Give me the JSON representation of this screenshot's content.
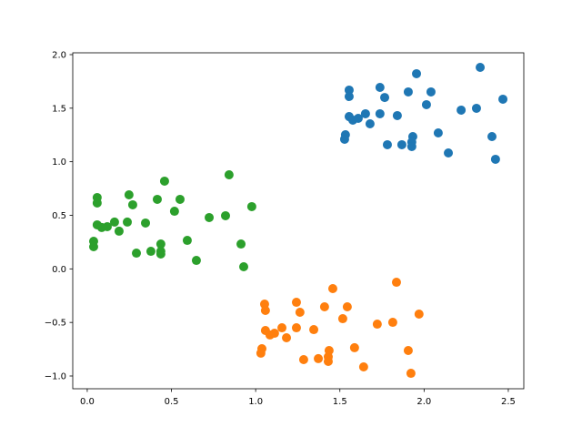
{
  "chart_data": {
    "type": "scatter",
    "xlim": [
      -0.086,
      2.592
    ],
    "ylim": [
      -1.119,
      2.017
    ],
    "xticks": [
      {
        "value": 0,
        "label": "0.0"
      },
      {
        "value": 0.5,
        "label": "0.5"
      },
      {
        "value": 1,
        "label": "1.0"
      },
      {
        "value": 1.5,
        "label": "1.5"
      },
      {
        "value": 2,
        "label": "2.0"
      },
      {
        "value": 2.5,
        "label": "2.5"
      }
    ],
    "yticks": [
      {
        "value": -1,
        "label": "−1.0"
      },
      {
        "value": -0.5,
        "label": "−0.5"
      },
      {
        "value": 0,
        "label": "0.0"
      },
      {
        "value": 0.5,
        "label": "0.5"
      },
      {
        "value": 1,
        "label": "1.0"
      },
      {
        "value": 1.5,
        "label": "1.5"
      },
      {
        "value": 2,
        "label": "2.0"
      }
    ],
    "series": [
      {
        "color": "#1f77b4",
        "x": [
          2.468,
          2.333,
          1.955,
          2.041,
          1.906,
          1.738,
          1.555,
          1.555,
          1.766,
          2.014,
          2.22,
          2.311,
          1.555,
          1.577,
          1.609,
          1.652,
          1.738,
          1.841,
          1.679,
          1.533,
          1.528,
          2.084,
          1.933,
          2.403,
          1.927,
          1.927,
          1.782,
          1.868,
          2.144,
          2.424
        ],
        "values": [
          1.584,
          1.881,
          1.822,
          1.652,
          1.652,
          1.694,
          1.669,
          1.609,
          1.6,
          1.533,
          1.482,
          1.499,
          1.422,
          1.388,
          1.405,
          1.448,
          1.448,
          1.431,
          1.354,
          1.252,
          1.21,
          1.269,
          1.235,
          1.235,
          1.184,
          1.142,
          1.159,
          1.159,
          1.082,
          1.023
        ]
      },
      {
        "color": "#ff7f0e",
        "x": [
          1.836,
          1.458,
          1.242,
          1.053,
          1.409,
          1.544,
          1.058,
          1.263,
          1.97,
          1.517,
          1.814,
          1.722,
          1.156,
          1.242,
          1.345,
          1.058,
          1.112,
          1.085,
          1.183,
          1.587,
          1.037,
          1.906,
          1.436,
          1.031,
          1.431,
          1.285,
          1.372,
          1.431,
          1.641,
          1.922
        ],
        "values": [
          -0.125,
          -0.184,
          -0.312,
          -0.329,
          -0.354,
          -0.354,
          -0.388,
          -0.405,
          -0.422,
          -0.465,
          -0.499,
          -0.516,
          -0.55,
          -0.55,
          -0.567,
          -0.575,
          -0.601,
          -0.617,
          -0.643,
          -0.736,
          -0.745,
          -0.762,
          -0.762,
          -0.787,
          -0.821,
          -0.847,
          -0.838,
          -0.864,
          -0.915,
          -0.975
        ]
      },
      {
        "color": "#2ca02c",
        "x": [
          0.842,
          0.459,
          0.248,
          0.059,
          0.416,
          0.551,
          0.059,
          0.27,
          0.977,
          0.518,
          0.724,
          0.821,
          0.059,
          0.162,
          0.238,
          0.346,
          0.086,
          0.119,
          0.189,
          0.038,
          0.594,
          0.437,
          0.038,
          0.913,
          0.378,
          0.292,
          0.437,
          0.437,
          0.648,
          0.929
        ],
        "values": [
          0.878,
          0.819,
          0.691,
          0.666,
          0.649,
          0.649,
          0.615,
          0.598,
          0.581,
          0.538,
          0.479,
          0.496,
          0.411,
          0.437,
          0.437,
          0.428,
          0.386,
          0.394,
          0.352,
          0.258,
          0.266,
          0.232,
          0.207,
          0.232,
          0.164,
          0.147,
          0.164,
          0.139,
          0.079,
          0.02
        ]
      }
    ]
  }
}
